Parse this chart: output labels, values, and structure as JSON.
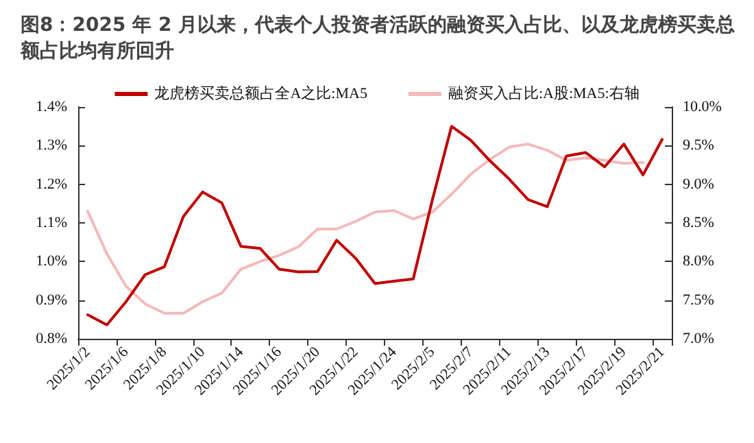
{
  "chart_data": {
    "type": "line",
    "title": "图8：2025 年 2 月以来，代表个人投资者活跃的融资买入占比、以及龙虎榜买卖总额占比均有所回升",
    "categories": [
      "2025/1/2",
      null,
      "2025/1/6",
      null,
      "2025/1/8",
      null,
      "2025/1/10",
      null,
      "2025/1/14",
      null,
      "2025/1/16",
      null,
      "2025/1/20",
      null,
      "2025/1/22",
      null,
      "2025/1/24",
      null,
      "2025/2/5",
      null,
      "2025/2/7",
      null,
      "2025/2/11",
      null,
      "2025/2/13",
      null,
      "2025/2/17",
      null,
      "2025/2/19",
      null,
      "2025/2/21"
    ],
    "series": [
      {
        "name": "龙虎榜买卖总额占全A之比:MA5",
        "color": "#c00000",
        "values": [
          0.862,
          0.836,
          0.896,
          0.966,
          0.986,
          1.117,
          1.18,
          1.152,
          1.039,
          1.034,
          0.98,
          0.973,
          0.974,
          1.055,
          1.008,
          0.943,
          0.949,
          0.955,
          1.16,
          1.35,
          1.314,
          1.261,
          1.214,
          1.16,
          1.142,
          1.273,
          1.282,
          1.245,
          1.304,
          1.224,
          1.316
        ]
      },
      {
        "name": "融资买入占比:A股:MA5:右轴",
        "color": "#f4b9b9",
        "axis": "y2",
        "values": [
          8.65,
          8.1,
          7.68,
          7.45,
          7.33,
          7.33,
          7.48,
          7.59,
          7.9,
          8.0,
          8.08,
          8.19,
          8.42,
          8.42,
          8.52,
          8.64,
          8.66,
          8.55,
          8.64,
          8.87,
          9.13,
          9.32,
          9.48,
          9.52,
          9.44,
          9.31,
          9.34,
          9.31,
          9.27,
          9.28,
          null
        ]
      }
    ],
    "ylim": [
      0.8,
      1.4
    ],
    "yticks": [
      {
        "value": 0.8,
        "label": "0.8%"
      },
      {
        "value": 0.9,
        "label": "0.9%"
      },
      {
        "value": 1.0,
        "label": "1.0%"
      },
      {
        "value": 1.1,
        "label": "1.1%"
      },
      {
        "value": 1.2,
        "label": "1.2%"
      },
      {
        "value": 1.3,
        "label": "1.3%"
      },
      {
        "value": 1.4,
        "label": "1.4%"
      }
    ],
    "y2lim": [
      7.0,
      10.0
    ],
    "y2ticks": [
      {
        "value": 7.0,
        "label": "7.0%"
      },
      {
        "value": 7.5,
        "label": "7.5%"
      },
      {
        "value": 8.0,
        "label": "8.0%"
      },
      {
        "value": 8.5,
        "label": "8.5%"
      },
      {
        "value": 9.0,
        "label": "9.0%"
      },
      {
        "value": 9.5,
        "label": "9.5%"
      },
      {
        "value": 10.0,
        "label": "10.0%"
      }
    ],
    "legend": "top",
    "grid": false,
    "marker": "none",
    "line_style": "solid"
  }
}
